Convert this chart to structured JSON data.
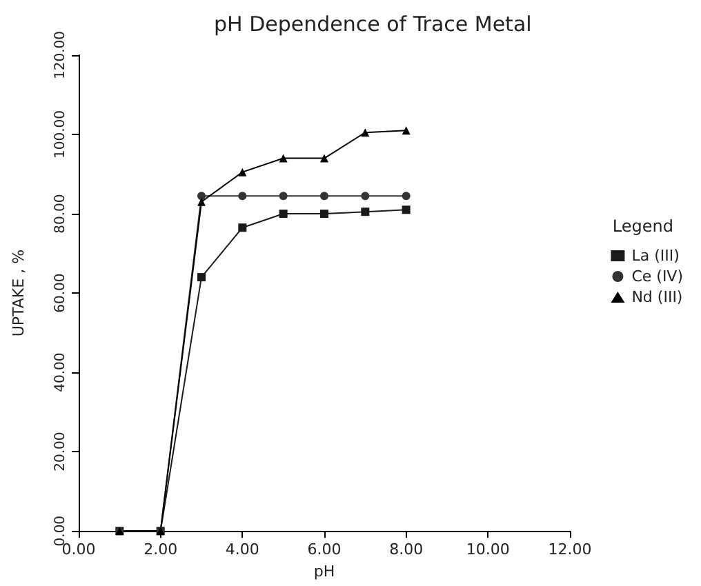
{
  "chart_data": {
    "type": "line",
    "title": "pH Dependence of Trace Metal",
    "xlabel": "pH",
    "ylabel": "UPTAKE , %",
    "legend_title": "Legend",
    "legend": "right",
    "grid": false,
    "xlim": [
      0,
      12
    ],
    "xticks": [
      {
        "value": 0,
        "label": "0.00"
      },
      {
        "value": 2,
        "label": "2.00"
      },
      {
        "value": 4,
        "label": "4.00"
      },
      {
        "value": 6,
        "label": "6.00"
      },
      {
        "value": 8,
        "label": "8.00"
      },
      {
        "value": 10,
        "label": "10.00"
      },
      {
        "value": 12,
        "label": "12.00"
      }
    ],
    "ylim": [
      0,
      120
    ],
    "yticks": [
      {
        "value": 0,
        "label": "0.00"
      },
      {
        "value": 20,
        "label": "20.00"
      },
      {
        "value": 40,
        "label": "40.00"
      },
      {
        "value": 60,
        "label": "60.00"
      },
      {
        "value": 80,
        "label": "80.00"
      },
      {
        "value": 100,
        "label": "100.00"
      },
      {
        "value": 120,
        "label": "120.00"
      }
    ],
    "x": [
      1,
      2,
      3,
      4,
      5,
      6,
      7,
      8
    ],
    "series": [
      {
        "name": "La (III)",
        "color": "#1a1a1a",
        "marker": "square",
        "values": [
          0,
          0,
          64,
          76.5,
          80,
          80,
          80.5,
          81
        ]
      },
      {
        "name": "Ce (IV)",
        "color": "#333333",
        "marker": "circle",
        "values": [
          0,
          0,
          84.5,
          84.5,
          84.5,
          84.5,
          84.5,
          84.5
        ]
      },
      {
        "name": "Nd (III)",
        "color": "#000000",
        "marker": "triangle",
        "values": [
          0,
          0,
          83,
          90.5,
          94,
          94,
          100.5,
          101
        ]
      }
    ]
  }
}
